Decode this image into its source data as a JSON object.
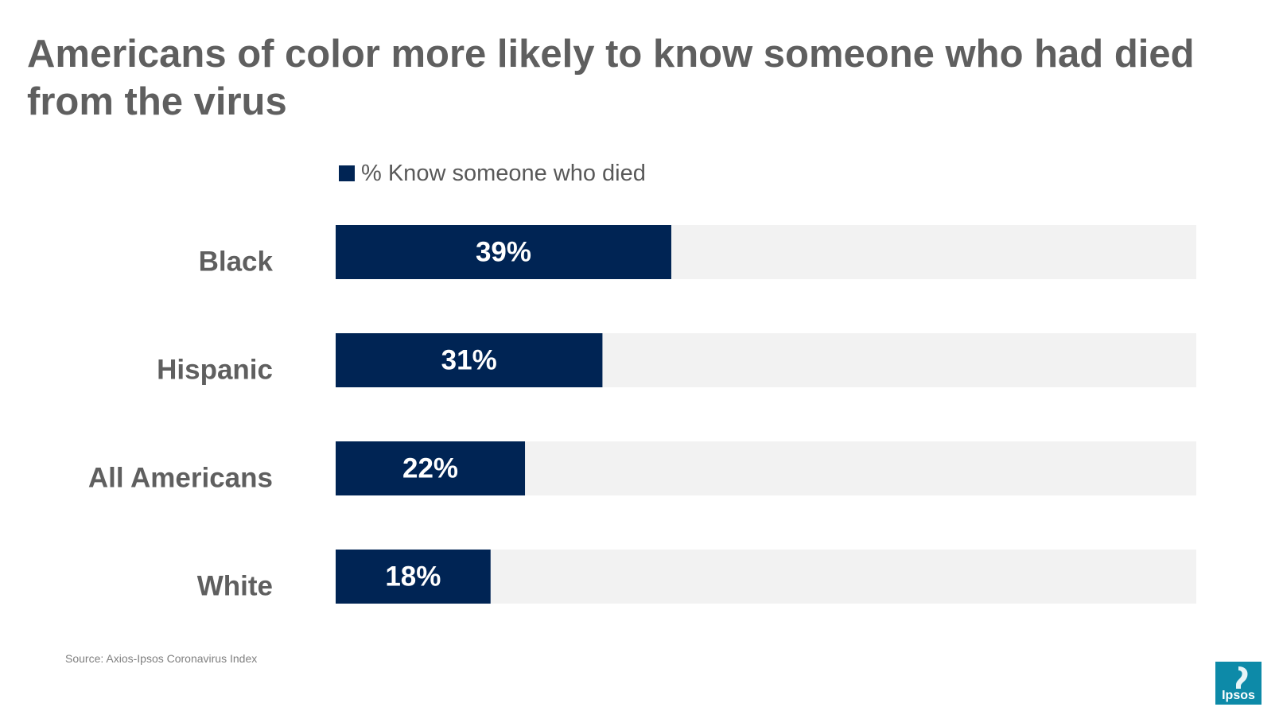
{
  "title": "Americans of color more likely to know someone who had died from the virus",
  "legend": {
    "label": "% Know someone who died",
    "color": "#002454"
  },
  "source": "Source: Axios-Ipsos Coronavirus Index",
  "logo_text": "Ipsos",
  "colors": {
    "bar": "#002454",
    "track": "#f2f2f2",
    "logo": "#0d8aa8"
  },
  "chart_data": {
    "type": "bar",
    "orientation": "horizontal",
    "title": "Americans of color more likely to know someone who had died from the virus",
    "categories": [
      "Black",
      "Hispanic",
      "All Americans",
      "White"
    ],
    "series": [
      {
        "name": "% Know someone who died",
        "values": [
          39,
          31,
          22,
          18
        ]
      }
    ],
    "value_labels": [
      "39%",
      "31%",
      "22%",
      "18%"
    ],
    "xlim": [
      0,
      100
    ],
    "xlabel": "",
    "ylabel": "",
    "grid": false,
    "legend_position": "top"
  }
}
